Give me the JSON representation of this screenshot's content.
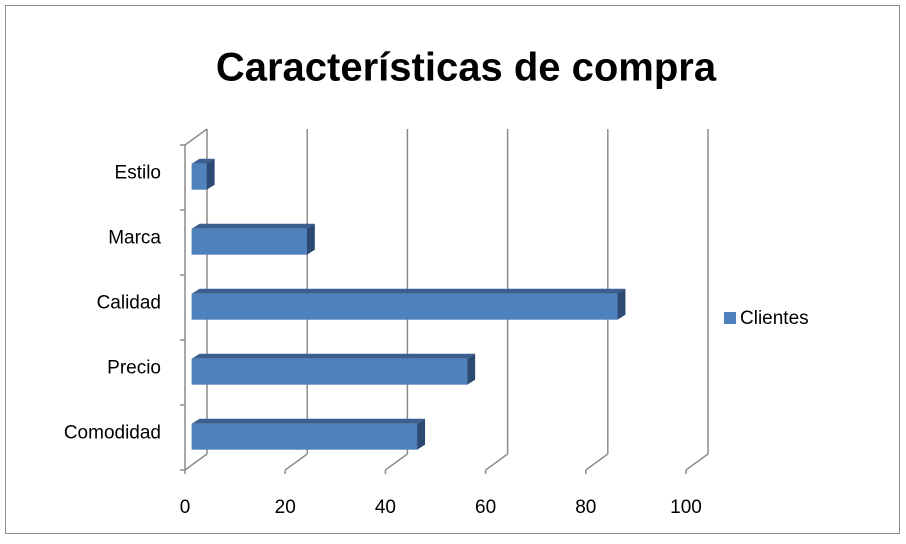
{
  "chart_data": {
    "type": "bar",
    "title": "Características de compra",
    "categories": [
      "Comodidad",
      "Precio",
      "Calidad",
      "Marca",
      "Estilo"
    ],
    "series": [
      {
        "name": "Clientes",
        "color": "#4f81bd",
        "values": [
          45,
          55,
          85,
          23,
          3
        ]
      }
    ],
    "xlim": [
      0,
      100
    ],
    "xticks": [
      0,
      20,
      40,
      60,
      80,
      100
    ],
    "grid": true,
    "legend": "right",
    "orientation": "horizontal"
  }
}
